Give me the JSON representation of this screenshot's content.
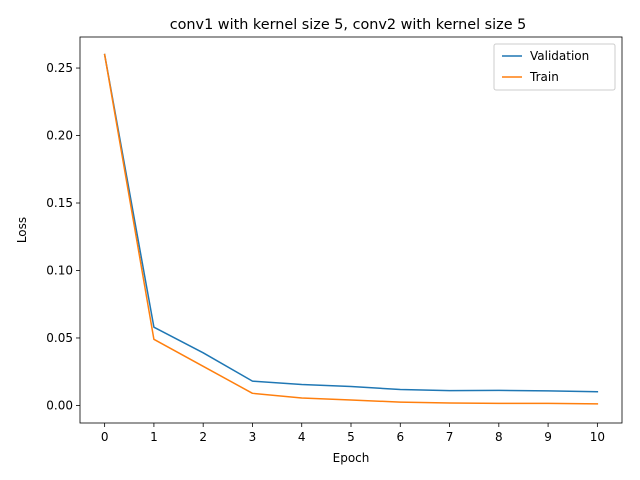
{
  "chart_data": {
    "type": "line",
    "title": "conv1 with kernel size 5, conv2 with kernel size 5",
    "xlabel": "Epoch",
    "ylabel": "Loss",
    "x": [
      0,
      1,
      2,
      3,
      4,
      5,
      6,
      7,
      8,
      9,
      10
    ],
    "xlim": [
      -0.5,
      10.5
    ],
    "ylim": [
      -0.013,
      0.273
    ],
    "xticks": [
      0,
      1,
      2,
      3,
      4,
      5,
      6,
      7,
      8,
      9,
      10
    ],
    "yticks": [
      0.0,
      0.05,
      0.1,
      0.15,
      0.2,
      0.25
    ],
    "ytick_labels": [
      "0.00",
      "0.05",
      "0.10",
      "0.15",
      "0.20",
      "0.25"
    ],
    "grid": false,
    "legend_position": "top-right",
    "series": [
      {
        "name": "Validation",
        "color": "#1f77b4",
        "values": [
          0.26,
          0.058,
          0.039,
          0.018,
          0.0155,
          0.014,
          0.0118,
          0.011,
          0.0112,
          0.0108,
          0.0102
        ]
      },
      {
        "name": "Train",
        "color": "#ff7f0e",
        "values": [
          0.26,
          0.049,
          0.029,
          0.009,
          0.0055,
          0.004,
          0.0025,
          0.0018,
          0.0015,
          0.0015,
          0.0012
        ]
      }
    ]
  }
}
